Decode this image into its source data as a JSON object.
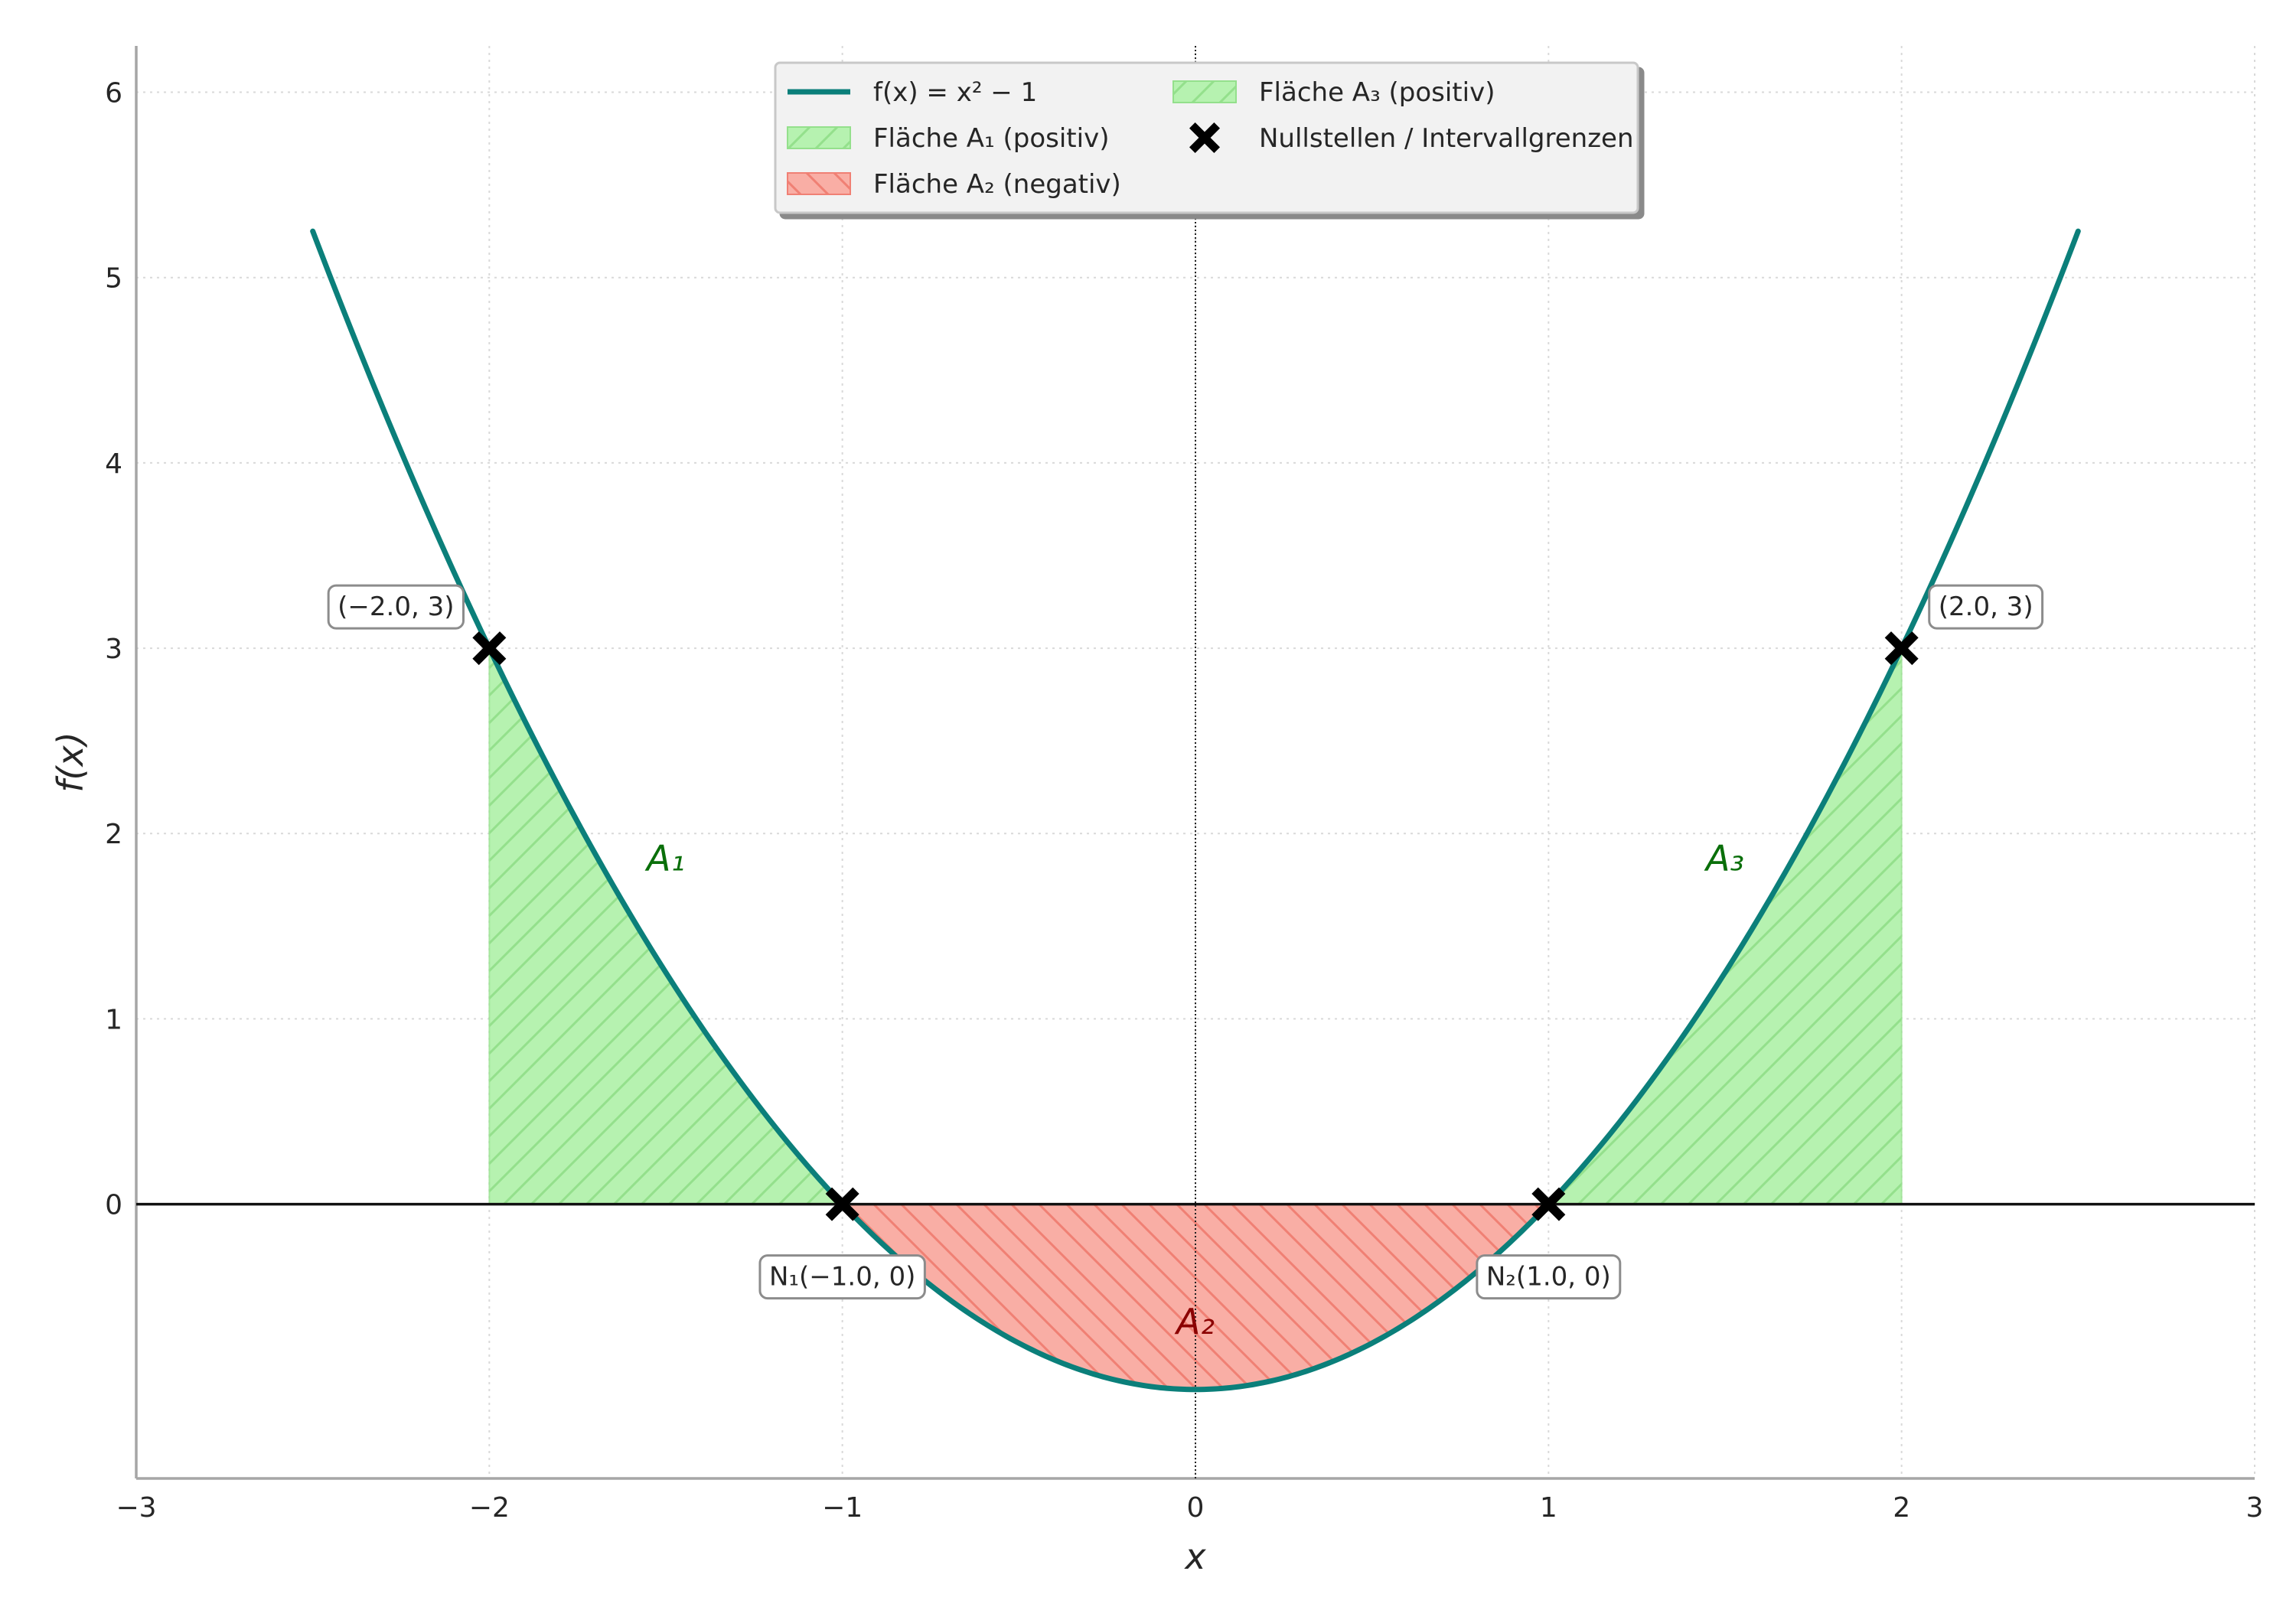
{
  "chart_data": {
    "type": "line",
    "title": "",
    "xlabel": "x",
    "ylabel": "f(x)",
    "xlim": [
      -3,
      3
    ],
    "ylim": [
      -1.48,
      6.25
    ],
    "grid": true,
    "legend_position": "top-center",
    "x_ticks": [
      {
        "value": -3,
        "label": "−3"
      },
      {
        "value": -2,
        "label": "−2"
      },
      {
        "value": -1,
        "label": "−1"
      },
      {
        "value": 0,
        "label": "0"
      },
      {
        "value": 1,
        "label": "1"
      },
      {
        "value": 2,
        "label": "2"
      },
      {
        "value": 3,
        "label": "3"
      }
    ],
    "y_ticks": [
      {
        "value": 0,
        "label": "0"
      },
      {
        "value": 1,
        "label": "1"
      },
      {
        "value": 2,
        "label": "2"
      },
      {
        "value": 3,
        "label": "3"
      },
      {
        "value": 4,
        "label": "4"
      },
      {
        "value": 5,
        "label": "5"
      },
      {
        "value": 6,
        "label": "6"
      }
    ],
    "function": {
      "name": "f(x) = x² − 1",
      "x_range": [
        -2.5,
        2.5
      ],
      "color": "#0b7f7a"
    },
    "areas": [
      {
        "name": "Fläche A₁ (positiv)",
        "label": "A₁",
        "from": -2,
        "to": -1,
        "sign": "positive",
        "fill": "#b6f2b0",
        "hatch": "#94e08c",
        "label_color": "#0a6f0a",
        "label_x": -1.5,
        "label_y": 1.8
      },
      {
        "name": "Fläche A₂ (negativ)",
        "label": "A₂",
        "from": -1,
        "to": 1,
        "sign": "negative",
        "fill": "#f9aea5",
        "hatch": "#f08074",
        "label_color": "#8b0000",
        "label_x": 0,
        "label_y": -0.7
      },
      {
        "name": "Fläche A₃ (positiv)",
        "label": "A₃",
        "from": 1,
        "to": 2,
        "sign": "positive",
        "fill": "#b6f2b0",
        "hatch": "#94e08c",
        "label_color": "#0a6f0a",
        "label_x": 1.5,
        "label_y": 1.8
      }
    ],
    "points": [
      {
        "x": -2,
        "y": 3,
        "label": "(−2.0, 3)",
        "label_side": "upper-left"
      },
      {
        "x": -1,
        "y": 0,
        "label": "N₁(−1.0, 0)",
        "label_side": "below"
      },
      {
        "x": 1,
        "y": 0,
        "label": "N₂(1.0, 0)",
        "label_side": "below"
      },
      {
        "x": 2,
        "y": 3,
        "label": "(2.0, 3)",
        "label_side": "upper-right"
      }
    ],
    "point_series_name": "Nullstellen / Intervallgrenzen",
    "legend": [
      {
        "key": "line",
        "label": "f(x) = x² − 1"
      },
      {
        "key": "a1",
        "label": "Fläche A₁ (positiv)"
      },
      {
        "key": "a2",
        "label": "Fläche A₂ (negativ)"
      },
      {
        "key": "a3",
        "label": "Fläche A₃ (positiv)"
      },
      {
        "key": "pts",
        "label": "Nullstellen / Intervallgrenzen"
      }
    ]
  }
}
